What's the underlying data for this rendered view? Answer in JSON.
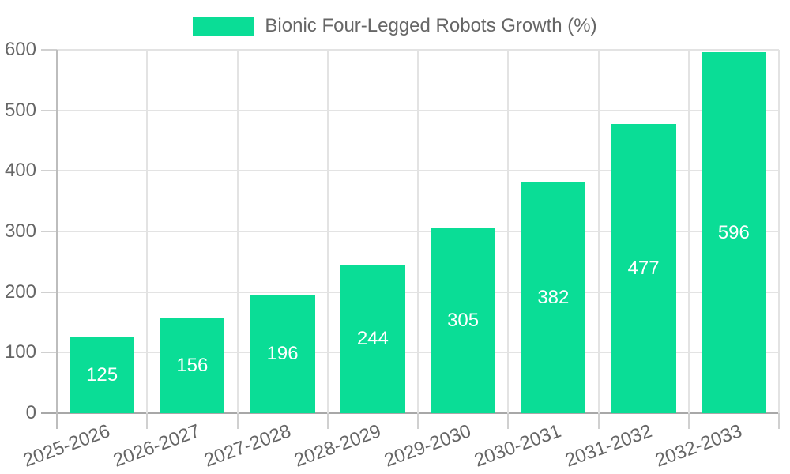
{
  "legend": {
    "label": "Bionic Four-Legged Robots Growth (%)"
  },
  "colors": {
    "bar": "#0ADD96",
    "grid": "#E3E3E3",
    "axis_x": "#A8A8A8",
    "axis_y": "#BDBDBD",
    "tick": "#D0D0D0",
    "text": "#666666",
    "bar_label": "#FFFFFF",
    "background": "#FFFFFF"
  },
  "chart_data": {
    "type": "bar",
    "title": "Bionic Four-Legged Robots Growth (%)",
    "categories": [
      "2025-2026",
      "2026-2027",
      "2027-2028",
      "2028-2029",
      "2029-2030",
      "2030-2031",
      "2031-2032",
      "2032-2033"
    ],
    "values": [
      125,
      156,
      196,
      244,
      305,
      382,
      477,
      596
    ],
    "y_ticks": [
      0,
      100,
      200,
      300,
      400,
      500,
      600
    ],
    "ylim": [
      0,
      600
    ],
    "xlabel": "",
    "ylabel": "",
    "grid": true,
    "legend_position": "top",
    "value_labels": "inside-center",
    "x_label_rotation_deg": -20
  }
}
